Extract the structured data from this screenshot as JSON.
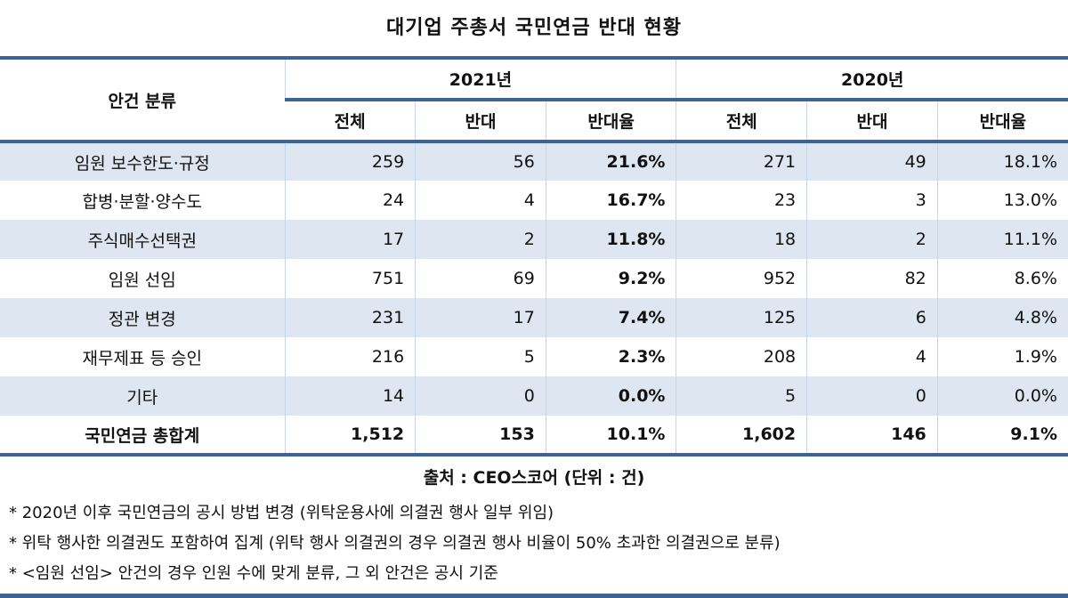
{
  "title": "대기업 주총서 국민연금 반대 현황",
  "header": {
    "category": "안건 분류",
    "years": [
      "2021년",
      "2020년"
    ],
    "sub": [
      "전체",
      "반대",
      "반대율"
    ]
  },
  "rows": [
    {
      "category": "임원 보수한도·규정",
      "y2021": [
        "259",
        "56",
        "21.6%"
      ],
      "y2020": [
        "271",
        "49",
        "18.1%"
      ]
    },
    {
      "category": "합병·분할·양수도",
      "y2021": [
        "24",
        "4",
        "16.7%"
      ],
      "y2020": [
        "23",
        "3",
        "13.0%"
      ]
    },
    {
      "category": "주식매수선택권",
      "y2021": [
        "17",
        "2",
        "11.8%"
      ],
      "y2020": [
        "18",
        "2",
        "11.1%"
      ]
    },
    {
      "category": "임원 선임",
      "y2021": [
        "751",
        "69",
        "9.2%"
      ],
      "y2020": [
        "952",
        "82",
        "8.6%"
      ]
    },
    {
      "category": "정관 변경",
      "y2021": [
        "231",
        "17",
        "7.4%"
      ],
      "y2020": [
        "125",
        "6",
        "4.8%"
      ]
    },
    {
      "category": "재무제표 등 승인",
      "y2021": [
        "216",
        "5",
        "2.3%"
      ],
      "y2020": [
        "208",
        "4",
        "1.9%"
      ]
    },
    {
      "category": "기타",
      "y2021": [
        "14",
        "0",
        "0.0%"
      ],
      "y2020": [
        "5",
        "0",
        "0.0%"
      ]
    }
  ],
  "total": {
    "category": "국민연금 총합계",
    "y2021": [
      "1,512",
      "153",
      "10.1%"
    ],
    "y2020": [
      "1,602",
      "146",
      "9.1%"
    ]
  },
  "source": "출처 : CEO스코어 (단위 : 건)",
  "notes": [
    "* 2020년 이후 국민연금의 공시 방법 변경 (위탁운용사에 의결권 행사 일부 위임)",
    "* 위탁 행사한 의결권도 포함하여 집계 (위탁 행사 의결권의 경우 의결권 행사 비율이 50% 초과한 의결권으로 분류)",
    "* <임원 선임> 안건의 경우 인원 수에 맞게 분류, 그 외 안건은 공시 기준"
  ],
  "colors": {
    "border": "#3b6399",
    "shade": "#dde6f1"
  }
}
